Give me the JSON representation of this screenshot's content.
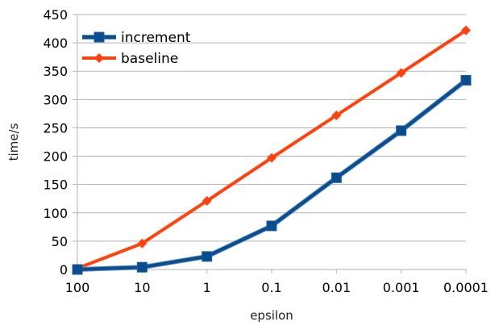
{
  "chart_data": {
    "type": "line",
    "categories": [
      "100",
      "10",
      "1",
      "0.1",
      "0.01",
      "0.001",
      "0.0001"
    ],
    "series": [
      {
        "name": "increment",
        "values": [
          0,
          4,
          23,
          77,
          162,
          245,
          334
        ],
        "color": "#0a4c8c",
        "marker": "square"
      },
      {
        "name": "baseline",
        "values": [
          2,
          46,
          121,
          197,
          272,
          347,
          422
        ],
        "color": "#ff420e",
        "marker": "diamond"
      }
    ],
    "title": "",
    "xlabel": "epsilon",
    "ylabel": "time/s",
    "ylim": [
      0,
      450
    ],
    "yticks": [
      "0",
      "50",
      "100",
      "150",
      "200",
      "250",
      "300",
      "350",
      "400",
      "450"
    ],
    "grid": "horizontal",
    "legend_position": "top-left"
  }
}
